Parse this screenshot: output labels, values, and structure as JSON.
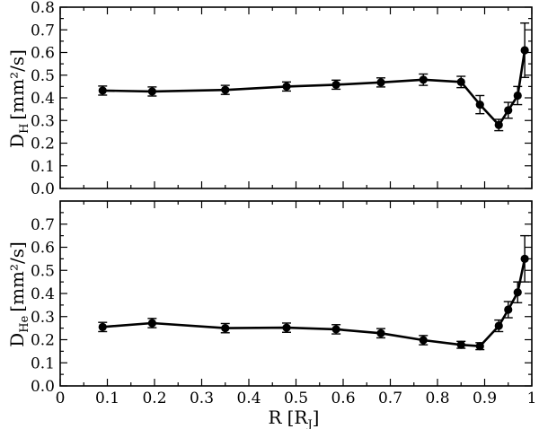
{
  "chart_data": [
    {
      "type": "line",
      "ylabel": "D",
      "ylabel_sub": "H",
      "ylabel_unit": "[mm²/s]",
      "xlim": [
        0,
        1
      ],
      "ylim": [
        0,
        0.8
      ],
      "xticks": [],
      "yticks": [
        "0.0",
        "0.1",
        "0.2",
        "0.3",
        "0.4",
        "0.5",
        "0.6",
        "0.7",
        "0.8"
      ],
      "series": [
        {
          "x": [
            0.09,
            0.195,
            0.35,
            0.48,
            0.585,
            0.68,
            0.77,
            0.85,
            0.89,
            0.93,
            0.95,
            0.97,
            0.985
          ],
          "y": [
            0.432,
            0.428,
            0.435,
            0.45,
            0.458,
            0.468,
            0.48,
            0.47,
            0.37,
            0.28,
            0.345,
            0.41,
            0.61
          ],
          "err": [
            0.02,
            0.02,
            0.02,
            0.02,
            0.02,
            0.02,
            0.025,
            0.025,
            0.04,
            0.025,
            0.035,
            0.04,
            0.12
          ]
        }
      ]
    },
    {
      "type": "line",
      "xlabel": "R",
      "xlabel_unit_pre": "[R",
      "xlabel_unit_sub": "J",
      "xlabel_unit_post": "]",
      "ylabel": "D",
      "ylabel_sub": "He",
      "ylabel_unit": "[mm²/s]",
      "xlim": [
        0,
        1
      ],
      "ylim": [
        0,
        0.8
      ],
      "xticks": [
        "0",
        "0.1",
        "0.2",
        "0.3",
        "0.4",
        "0.5",
        "0.6",
        "0.7",
        "0.8",
        "0.9",
        "1"
      ],
      "yticks": [
        "0.0",
        "0.1",
        "0.2",
        "0.3",
        "0.4",
        "0.5",
        "0.6",
        "0.7"
      ],
      "series": [
        {
          "x": [
            0.09,
            0.195,
            0.35,
            0.48,
            0.585,
            0.68,
            0.77,
            0.85,
            0.89,
            0.93,
            0.95,
            0.97,
            0.985
          ],
          "y": [
            0.255,
            0.272,
            0.25,
            0.252,
            0.245,
            0.228,
            0.198,
            0.178,
            0.172,
            0.26,
            0.33,
            0.405,
            0.55
          ],
          "err": [
            0.02,
            0.02,
            0.02,
            0.02,
            0.02,
            0.02,
            0.02,
            0.015,
            0.015,
            0.025,
            0.035,
            0.045,
            0.1
          ]
        }
      ]
    }
  ]
}
